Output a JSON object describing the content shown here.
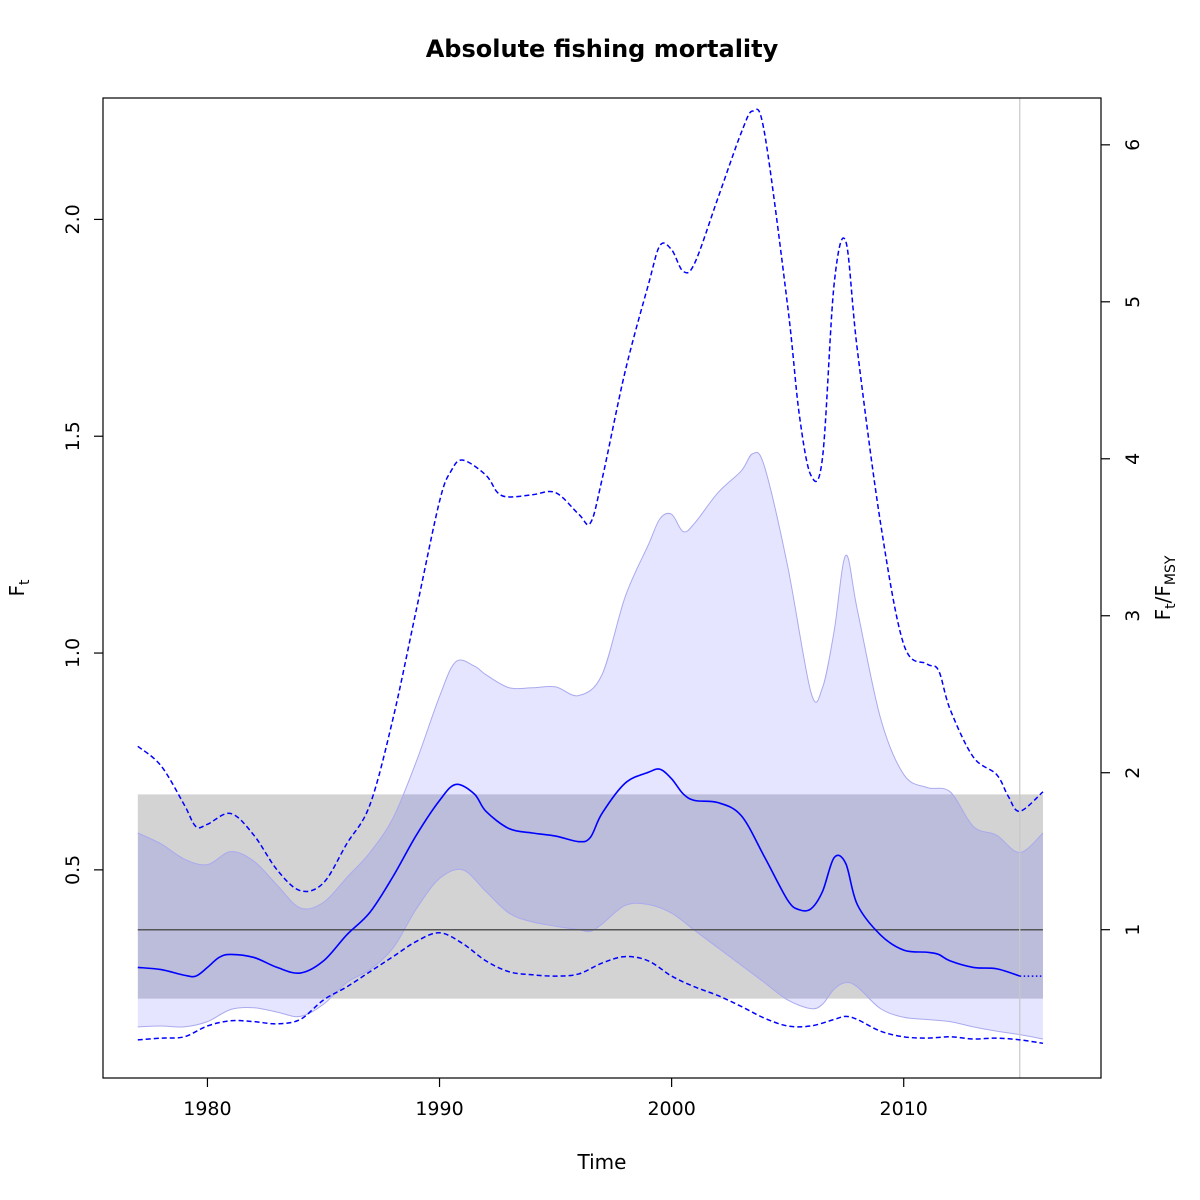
{
  "chart_data": {
    "type": "line",
    "title": "Absolute fishing mortality",
    "xlabel": "Time",
    "ylabel_left": {
      "main": "F",
      "sub": "t"
    },
    "ylabel_right": {
      "main1": "F",
      "sub1": "t",
      "slash": "/",
      "main2": "F",
      "sub2": "MSY"
    },
    "xlim": [
      1975.5,
      2018.5
    ],
    "ylim": [
      0.02,
      2.28
    ],
    "x_ticks": [
      1980,
      1990,
      2000,
      2010
    ],
    "y_ticks_left": [
      0.5,
      1.0,
      1.5,
      2.0
    ],
    "y_tick_labels_left": [
      "0.5",
      "1.0",
      "1.5",
      "2.0"
    ],
    "y_ticks_right": [
      1,
      2,
      3,
      4,
      5,
      6
    ],
    "fmsy": 0.362,
    "fmsy_band": {
      "lower": 0.203,
      "upper": 0.674
    },
    "vertical_line_x": 2015,
    "colors": {
      "estimate": "#0000ff",
      "ci_fill": "#e5e5ff",
      "ci_edge": "#aaaaee",
      "band_fill": "#d3d3d3",
      "overlap_fill": "#bcbcdb",
      "fmsy_line": "#555555",
      "vline": "#c8c8c8"
    },
    "series": [
      {
        "role": "estimate",
        "x": [
          1977,
          1978,
          1979,
          1979.5,
          1980,
          1980.5,
          1981,
          1982,
          1983,
          1984,
          1985,
          1986,
          1987,
          1988,
          1989,
          1990,
          1990.7,
          1991.5,
          1992,
          1993,
          1994,
          1995,
          1996,
          1996.5,
          1997,
          1998,
          1999,
          1999.5,
          2000,
          2000.5,
          2001,
          2002,
          2003,
          2004,
          2005,
          2005.5,
          2006,
          2006.5,
          2007,
          2007.5,
          2008,
          2009,
          2010,
          2011,
          2011.5,
          2012,
          2013,
          2014,
          2015
        ],
        "y": [
          0.275,
          0.27,
          0.257,
          0.255,
          0.275,
          0.298,
          0.305,
          0.298,
          0.275,
          0.262,
          0.29,
          0.35,
          0.402,
          0.485,
          0.58,
          0.66,
          0.697,
          0.675,
          0.635,
          0.595,
          0.585,
          0.578,
          0.565,
          0.575,
          0.63,
          0.7,
          0.725,
          0.732,
          0.71,
          0.675,
          0.66,
          0.655,
          0.625,
          0.53,
          0.43,
          0.408,
          0.41,
          0.45,
          0.528,
          0.515,
          0.42,
          0.35,
          0.315,
          0.31,
          0.305,
          0.29,
          0.275,
          0.272,
          0.255
        ]
      },
      {
        "role": "estimate-forecast",
        "x": [
          2015,
          2016
        ],
        "y": [
          0.255,
          0.255
        ]
      },
      {
        "role": "ci-upper",
        "x": [
          1977,
          1978,
          1979,
          1980,
          1981,
          1982,
          1983,
          1984,
          1985,
          1986,
          1987,
          1988,
          1989,
          1990,
          1990.7,
          1991.5,
          1992,
          1993,
          1994,
          1995,
          1996,
          1997,
          1998,
          1999,
          1999.5,
          2000,
          2000.5,
          2001,
          2002,
          2003,
          2003.5,
          2004,
          2005,
          2006,
          2006.5,
          2007,
          2007.5,
          2008,
          2009,
          2010,
          2011,
          2012,
          2013,
          2014,
          2015,
          2016
        ],
        "y": [
          0.585,
          0.56,
          0.525,
          0.512,
          0.542,
          0.52,
          0.465,
          0.412,
          0.425,
          0.482,
          0.54,
          0.62,
          0.75,
          0.9,
          0.98,
          0.97,
          0.95,
          0.92,
          0.92,
          0.922,
          0.902,
          0.95,
          1.13,
          1.25,
          1.31,
          1.32,
          1.28,
          1.3,
          1.37,
          1.42,
          1.46,
          1.43,
          1.2,
          0.91,
          0.92,
          1.05,
          1.225,
          1.1,
          0.85,
          0.72,
          0.69,
          0.68,
          0.6,
          0.58,
          0.54,
          0.585
        ]
      },
      {
        "role": "ci-lower",
        "x": [
          1977,
          1978,
          1979,
          1980,
          1981,
          1982,
          1983,
          1984,
          1985,
          1986,
          1987,
          1988,
          1989,
          1990,
          1991,
          1992,
          1993,
          1994,
          1995,
          1996,
          1996.5,
          1997,
          1998,
          1999,
          2000,
          2001,
          2002,
          2003,
          2004,
          2005,
          2006,
          2006.5,
          2007,
          2007.5,
          2008,
          2009,
          2010,
          2011,
          2012,
          2013,
          2014,
          2015,
          2016
        ],
        "y": [
          0.138,
          0.14,
          0.138,
          0.15,
          0.178,
          0.182,
          0.172,
          0.162,
          0.19,
          0.24,
          0.27,
          0.32,
          0.41,
          0.48,
          0.5,
          0.45,
          0.4,
          0.38,
          0.37,
          0.362,
          0.358,
          0.375,
          0.418,
          0.42,
          0.4,
          0.36,
          0.32,
          0.28,
          0.24,
          0.2,
          0.18,
          0.19,
          0.225,
          0.24,
          0.23,
          0.18,
          0.16,
          0.155,
          0.15,
          0.138,
          0.128,
          0.12,
          0.11
        ]
      },
      {
        "role": "pi-upper",
        "x": [
          1977,
          1978,
          1979,
          1979.5,
          1980,
          1981,
          1982,
          1983,
          1984,
          1985,
          1986,
          1987,
          1988,
          1989,
          1990,
          1990.5,
          1991,
          1992,
          1992.5,
          1993,
          1994,
          1995,
          1996,
          1996.5,
          1997,
          1998,
          1999,
          1999.5,
          2000,
          2000.5,
          2001,
          2002,
          2003,
          2003.5,
          2004,
          2005,
          2005.5,
          2006,
          2006.5,
          2007,
          2007.5,
          2008,
          2009,
          2010,
          2011,
          2011.5,
          2012,
          2013,
          2014,
          2014.5,
          2015,
          2016
        ],
        "y": [
          0.785,
          0.74,
          0.65,
          0.6,
          0.605,
          0.63,
          0.58,
          0.5,
          0.452,
          0.47,
          0.56,
          0.65,
          0.85,
          1.1,
          1.35,
          1.42,
          1.445,
          1.41,
          1.37,
          1.36,
          1.365,
          1.37,
          1.32,
          1.3,
          1.4,
          1.65,
          1.85,
          1.94,
          1.93,
          1.88,
          1.9,
          2.05,
          2.2,
          2.25,
          2.2,
          1.8,
          1.55,
          1.41,
          1.45,
          1.85,
          1.95,
          1.7,
          1.3,
          1.02,
          0.975,
          0.96,
          0.87,
          0.76,
          0.72,
          0.67,
          0.635,
          0.68
        ]
      },
      {
        "role": "pi-lower",
        "x": [
          1977,
          1978,
          1979,
          1980,
          1981,
          1982,
          1983,
          1984,
          1985,
          1986,
          1987,
          1988,
          1989,
          1990,
          1991,
          1992,
          1993,
          1994,
          1995,
          1996,
          1997,
          1998,
          1999,
          2000,
          2001,
          2002,
          2003,
          2004,
          2005,
          2006,
          2007,
          2007.5,
          2008,
          2009,
          2010,
          2011,
          2012,
          2013,
          2014,
          2015,
          2016
        ],
        "y": [
          0.108,
          0.112,
          0.115,
          0.14,
          0.152,
          0.15,
          0.145,
          0.155,
          0.2,
          0.23,
          0.265,
          0.3,
          0.335,
          0.355,
          0.33,
          0.29,
          0.265,
          0.258,
          0.255,
          0.26,
          0.285,
          0.3,
          0.29,
          0.255,
          0.23,
          0.21,
          0.185,
          0.158,
          0.14,
          0.14,
          0.155,
          0.162,
          0.155,
          0.128,
          0.115,
          0.112,
          0.115,
          0.11,
          0.112,
          0.108,
          0.1
        ]
      }
    ]
  }
}
